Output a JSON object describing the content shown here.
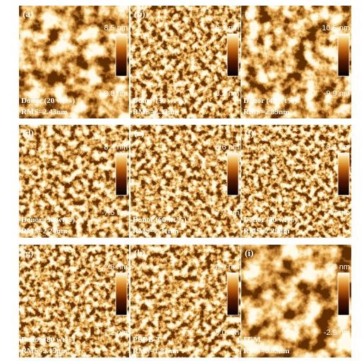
{
  "panels": [
    {
      "label": "(a)",
      "max": "8.5 nm",
      "min": "-8.8 nm",
      "sample": "Donor (20 wt%)",
      "rms": "RMS=2.43nm"
    },
    {
      "label": "(b)",
      "max": "8.1 nm",
      "min": "-8.2 nm",
      "sample": "Donor (30 wt%)",
      "rms": "RMS=2.33nm"
    },
    {
      "label": "(c)",
      "max": "10.5 nm",
      "min": "-9.9 nm",
      "sample": "Donor (40 wt%)",
      "rms": "RMS=2.89nm"
    },
    {
      "label": "(d)",
      "max": "8.4 nm",
      "min": "-7.5 nm",
      "sample": "Donor (50 wt%)",
      "rms": "RMS=2.24nm"
    },
    {
      "label": "(e)",
      "max": "8.6 nm",
      "min": "-7.7 nm",
      "sample": "Donor (60 wt%)",
      "rms": "RMS=2.31nm"
    },
    {
      "label": "(f)",
      "max": "8.4 nm",
      "min": "-7.7 nm",
      "sample": "Donor (70 wt%)",
      "rms": "RMS=2.29nm"
    },
    {
      "label": "(g)",
      "max": "7.8 nm",
      "min": "-7.2 nm",
      "sample": "Donor (80 wt%)",
      "rms": "RMS=2.15nm"
    },
    {
      "label": "(h)",
      "max": "6.9 nm",
      "min": "-6.0 nm",
      "sample": "PBDB-T",
      "rms": "RMS=1.82nm"
    },
    {
      "label": "(i)",
      "max": "3.3 nm",
      "min": "-2.9 nm",
      "sample": "IT-M",
      "rms": "RMS=0.89nm"
    }
  ]
}
